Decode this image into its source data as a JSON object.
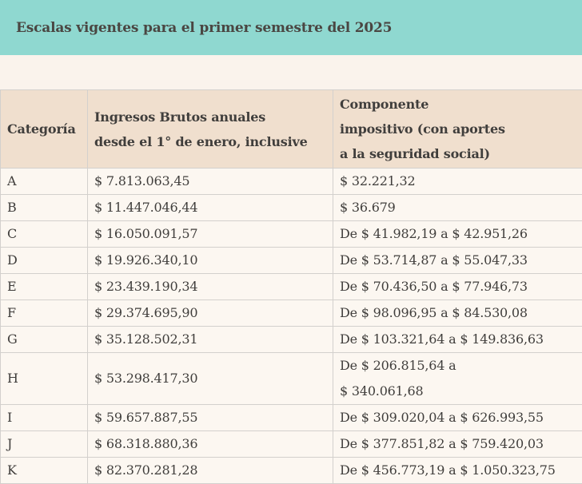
{
  "colors": {
    "band_bg": "#8fd8d0",
    "page_bg": "#faf3ec",
    "header_bg": "#f0dfce",
    "row_bg": "#fcf7f1",
    "border": "#d3d0cd",
    "title_text": "#4a4642",
    "body_text": "#403e3c"
  },
  "header": {
    "title": "Escalas vigentes para el primer semestre del 2025"
  },
  "table": {
    "columns": [
      {
        "label": "Categoría"
      },
      {
        "label": "Ingresos Brutos anuales\ndesde el 1° de enero, inclusive"
      },
      {
        "label": "Componente\nimpositivo (con aportes\na la seguridad social)"
      }
    ],
    "rows": [
      {
        "category": "A",
        "ingresos": "$ 7.813.063,45",
        "componente": "$ 32.221,32"
      },
      {
        "category": "B",
        "ingresos": "$ 11.447.046,44",
        "componente": "$ 36.679"
      },
      {
        "category": "C",
        "ingresos": "$ 16.050.091,57",
        "componente": "De $ 41.982,19 a $ 42.951,26"
      },
      {
        "category": "D",
        "ingresos": "$ 19.926.340,10",
        "componente": "De $ 53.714,87 a $ 55.047,33"
      },
      {
        "category": "E",
        "ingresos": "$ 23.439.190,34",
        "componente": "De $ 70.436,50 a $ 77.946,73"
      },
      {
        "category": "F",
        "ingresos": "$ 29.374.695,90",
        "componente": "De $ 98.096,95 a $ 84.530,08"
      },
      {
        "category": "G",
        "ingresos": "$ 35.128.502,31",
        "componente": "De $ 103.321,64 a $ 149.836,63"
      },
      {
        "category": "H",
        "ingresos": "$ 53.298.417,30",
        "componente": "De $ 206.815,64 a\n$ 340.061,68"
      },
      {
        "category": "I",
        "ingresos": "$ 59.657.887,55",
        "componente": "De $ 309.020,04 a $ 626.993,55"
      },
      {
        "category": "J",
        "ingresos": "$ 68.318.880,36",
        "componente": "De $ 377.851,82 a $ 759.420,03"
      },
      {
        "category": "K",
        "ingresos": "$ 82.370.281,28",
        "componente": "De $ 456.773,19 a $ 1.050.323,75"
      }
    ]
  }
}
